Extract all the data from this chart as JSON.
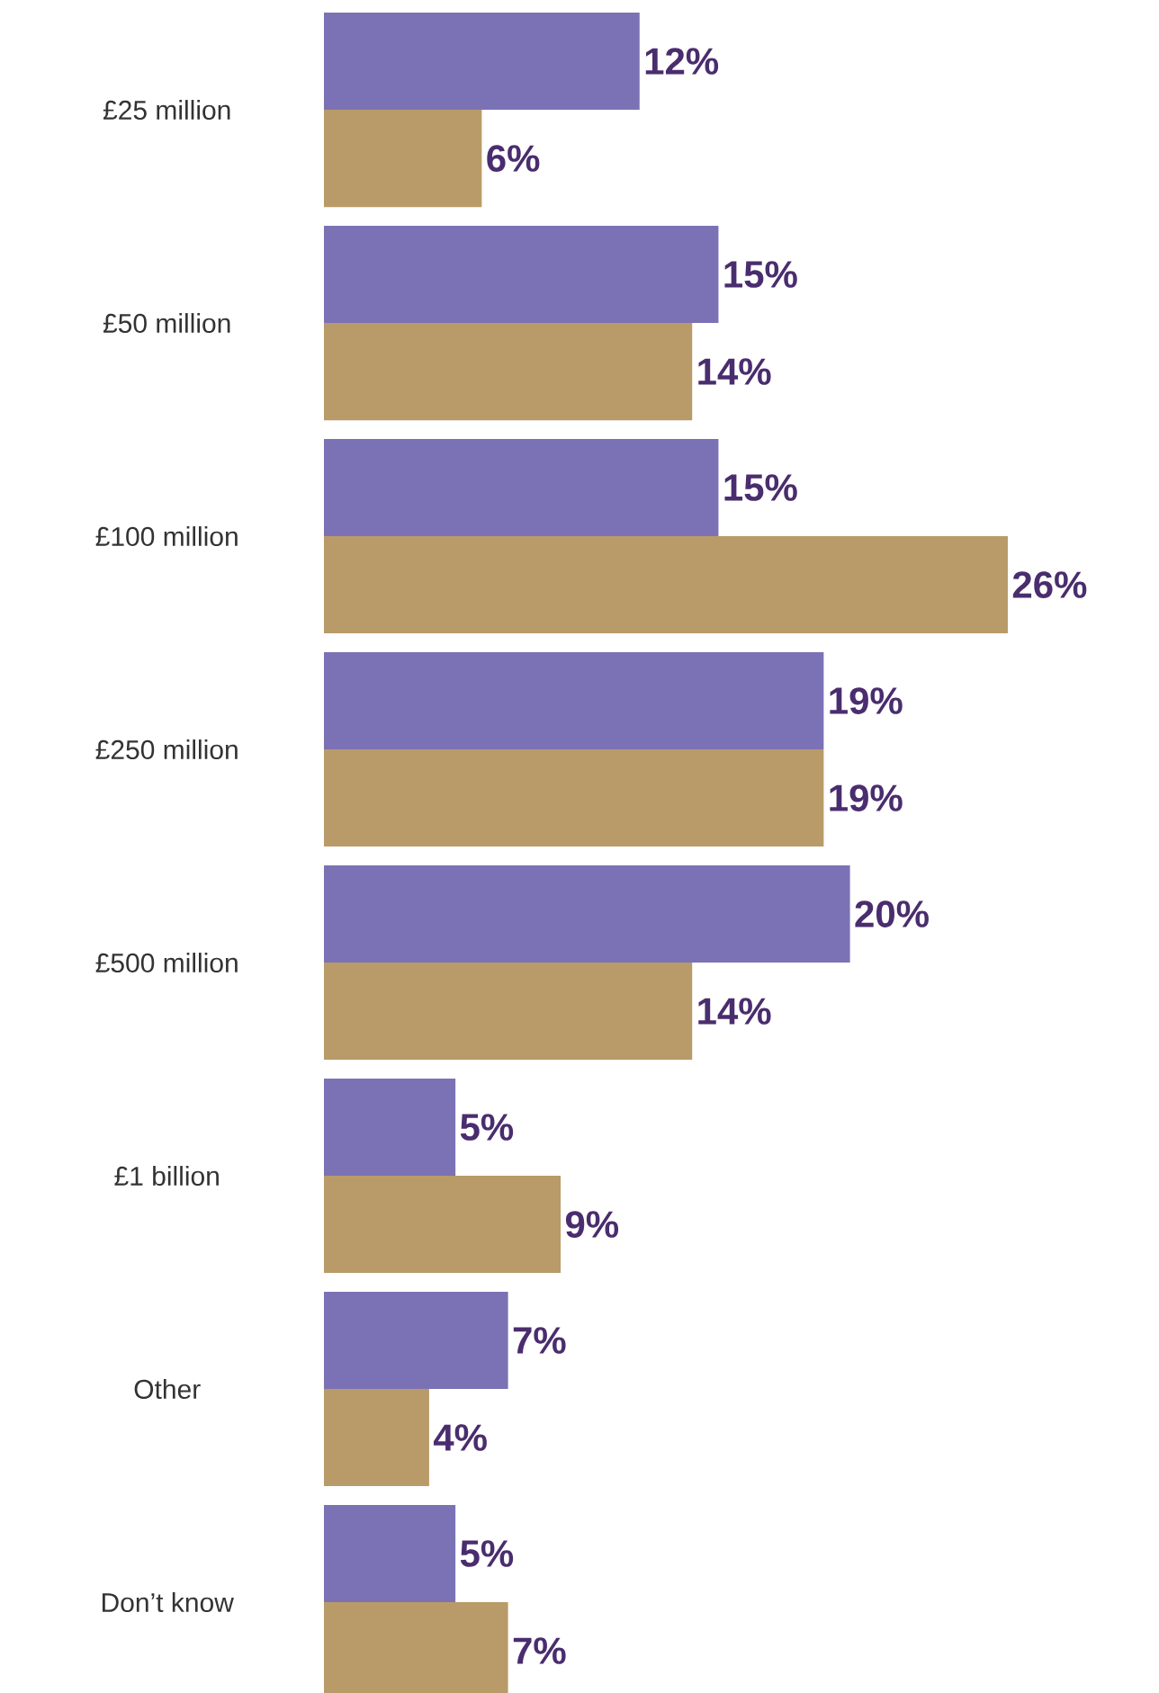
{
  "chart_data": {
    "type": "bar",
    "orientation": "horizontal",
    "categories": [
      "£25 million",
      "£50 million",
      "£100 million",
      "£250 million",
      "£500 million",
      "£1 billion",
      "Other",
      "Don’t know"
    ],
    "series": [
      {
        "color": "#7b72b5",
        "values": [
          12,
          15,
          15,
          19,
          20,
          5,
          7,
          5
        ],
        "value_labels": [
          "12%",
          "15%",
          "15%",
          "19%",
          "20%",
          "5%",
          "7%",
          "5%"
        ]
      },
      {
        "color": "#b89b68",
        "values": [
          6,
          14,
          26,
          19,
          14,
          9,
          4,
          7
        ],
        "value_labels": [
          "6%",
          "14%",
          "26%",
          "19%",
          "14%",
          "9%",
          "4%",
          "7%"
        ]
      }
    ]
  }
}
